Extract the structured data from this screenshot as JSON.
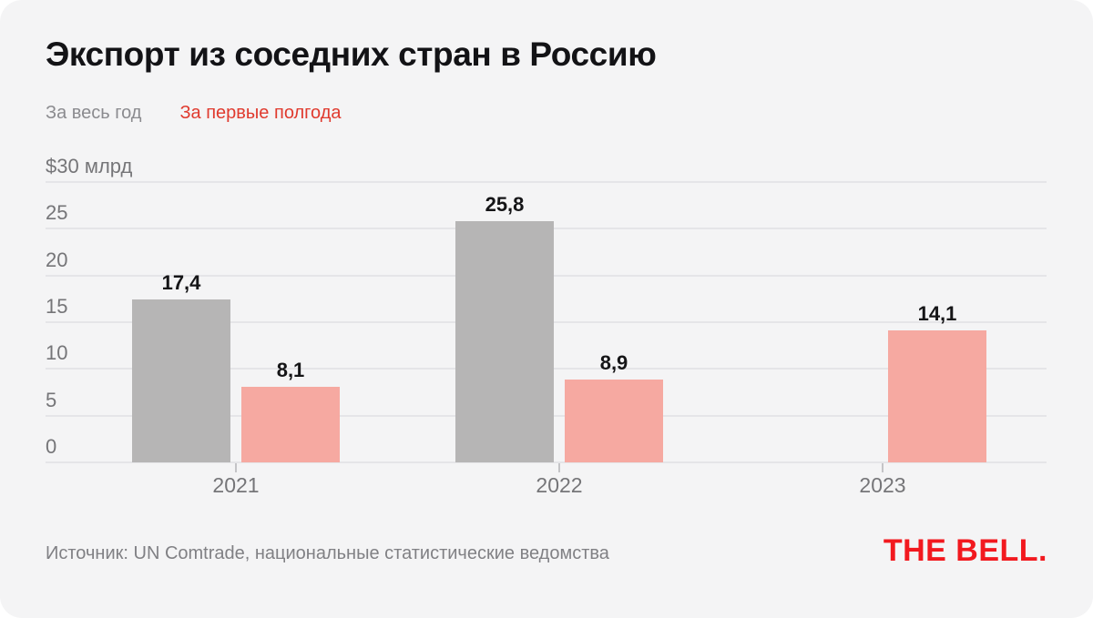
{
  "header": {
    "title": "Экспорт из соседних стран в Россию"
  },
  "legend": {
    "full_year_label": "За весь год",
    "half_year_label": "За первые полгода"
  },
  "footer": {
    "source": "Источник: UN Comtrade, национальные статистические ведомства",
    "logo": "THE BELL."
  },
  "colors": {
    "card_bg": "#f4f4f5",
    "full_year_bar": "#b6b5b5",
    "half_year_bar": "#f6a9a1",
    "legend_full_year_text": "#8b8b8f",
    "legend_half_year_text": "#e03a2e",
    "gridline": "#e5e5e8",
    "axis_text": "#757578",
    "value_text": "#151517",
    "title_text": "#131316",
    "source_text": "#808084",
    "logo_red": "#f2191f"
  },
  "chart_data": {
    "type": "bar",
    "title": "Экспорт из соседних стран в Россию",
    "unit": "$ млрд",
    "categories": [
      "2021",
      "2022",
      "2023"
    ],
    "series": [
      {
        "key": "full-year",
        "name": "За весь год",
        "color": "#b6b5b5",
        "values": [
          17.4,
          25.8,
          null
        ]
      },
      {
        "key": "half-year",
        "name": "За первые полгода",
        "color": "#f6a9a1",
        "values": [
          8.1,
          8.9,
          14.1
        ]
      }
    ],
    "ylim": [
      0,
      30
    ],
    "y_ticks": [
      30,
      25,
      20,
      15,
      10,
      5,
      0
    ],
    "y_top_tick_label": "$30 млрд",
    "grid": true,
    "legend_position": "top-left",
    "value_labels": true,
    "decimal_separator": ","
  }
}
